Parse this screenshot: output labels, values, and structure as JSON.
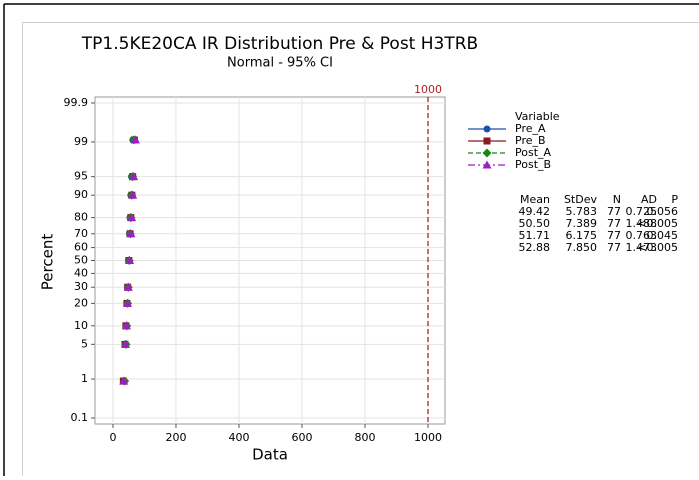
{
  "chart_data": {
    "type": "probability",
    "title": "TP1.5KE20CA IR Distribution Pre & Post H3TRB",
    "subtitle": "Normal - 95% CI",
    "xlabel": "Data",
    "ylabel": "Percent",
    "xlim": [
      -57,
      1054
    ],
    "ylim": [
      0.1,
      99.9
    ],
    "xticks": [
      0,
      200,
      400,
      600,
      800,
      1000
    ],
    "yticks": [
      0.1,
      1,
      5,
      10,
      20,
      30,
      40,
      50,
      60,
      70,
      80,
      90,
      95,
      99,
      99.9
    ],
    "grid": true,
    "reference_line": {
      "value": 1000,
      "color": "#b22222"
    },
    "legend_title": "Variable",
    "series": [
      {
        "name": "Pre_A",
        "color": "#1f4fa8",
        "marker": "circle",
        "dash": "solid",
        "x": [
          35.7,
          39.9,
          42.0,
          44.6,
          46.4,
          49.4,
          52.4,
          54.3,
          56.8,
          58.9,
          63.1
        ],
        "values": [
          0.9,
          5,
          10,
          20,
          30,
          50,
          70,
          80,
          90,
          95,
          99.1
        ]
      },
      {
        "name": "Pre_B",
        "color": "#8b1a1a",
        "marker": "square",
        "dash": "solid",
        "x": [
          33.0,
          38.3,
          41.0,
          44.3,
          46.7,
          50.5,
          54.3,
          56.7,
          60.0,
          62.7,
          68.0
        ],
        "values": [
          0.9,
          5,
          10,
          20,
          30,
          50,
          70,
          80,
          90,
          95,
          99.1
        ]
      },
      {
        "name": "Post_A",
        "color": "#138a13",
        "marker": "diamond",
        "dash": "dashed",
        "x": [
          37.1,
          41.6,
          43.8,
          46.5,
          48.5,
          51.7,
          54.9,
          56.9,
          59.6,
          61.9,
          66.3
        ],
        "values": [
          0.9,
          5,
          10,
          20,
          30,
          50,
          70,
          80,
          90,
          95,
          99.1
        ]
      },
      {
        "name": "Post_B",
        "color": "#9b1fc4",
        "marker": "triangle",
        "dash": "dashdot",
        "x": [
          34.3,
          40.0,
          42.8,
          46.3,
          48.8,
          52.9,
          57.0,
          59.5,
          62.9,
          65.8,
          71.5
        ],
        "values": [
          0.9,
          5,
          10,
          20,
          30,
          50,
          70,
          80,
          90,
          95,
          99.1
        ]
      }
    ],
    "stats_table": {
      "header": [
        "Mean",
        "StDev",
        "N",
        "AD",
        "P"
      ],
      "rows": [
        [
          "49.42",
          "5.783",
          "77",
          "0.725",
          "0.056"
        ],
        [
          "50.50",
          "7.389",
          "77",
          "1.488",
          "<0.005"
        ],
        [
          "51.71",
          "6.175",
          "77",
          "0.763",
          "0.045"
        ],
        [
          "52.88",
          "7.850",
          "77",
          "1.473",
          "<0.005"
        ]
      ]
    }
  }
}
